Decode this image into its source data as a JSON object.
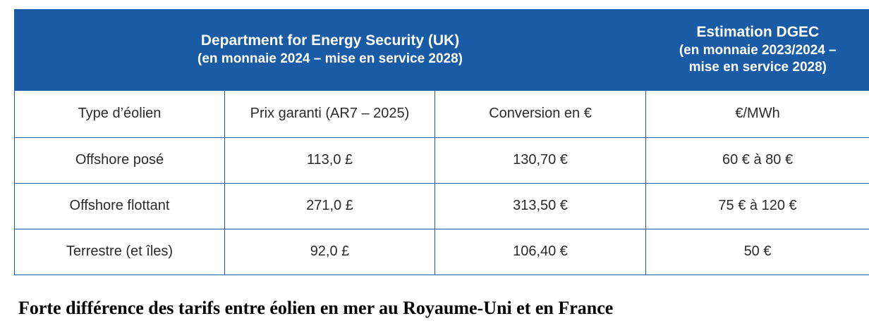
{
  "header": {
    "uk_title": "Department for Energy Security (UK)",
    "uk_sub": "(en monnaie 2024 – mise en service 2028)",
    "dgec_title": "Estimation DGEC",
    "dgec_sub_1": "(en monnaie 2023/2024 –",
    "dgec_sub_2": "mise en service 2028)"
  },
  "columns": [
    "Type d’éolien",
    "Prix garanti (AR7 – 2025)",
    "Conversion en €",
    "€/MWh"
  ],
  "rows": [
    [
      "Offshore posé",
      "113,0 £",
      "130,70 €",
      "60 € à 80 €"
    ],
    [
      "Offshore flottant",
      "271,0 £",
      "313,50 €",
      "75 € à 120 €"
    ],
    [
      "Terrestre (et îles)",
      "92,0 £",
      "106,40 €",
      "50 €"
    ]
  ],
  "caption": "Forte différence des tarifs entre éolien en mer au Royaume-Uni et en France",
  "colors": {
    "header_bg": "#1a5ba6",
    "header_text": "#ffffff",
    "border": "#1a5ba6"
  }
}
